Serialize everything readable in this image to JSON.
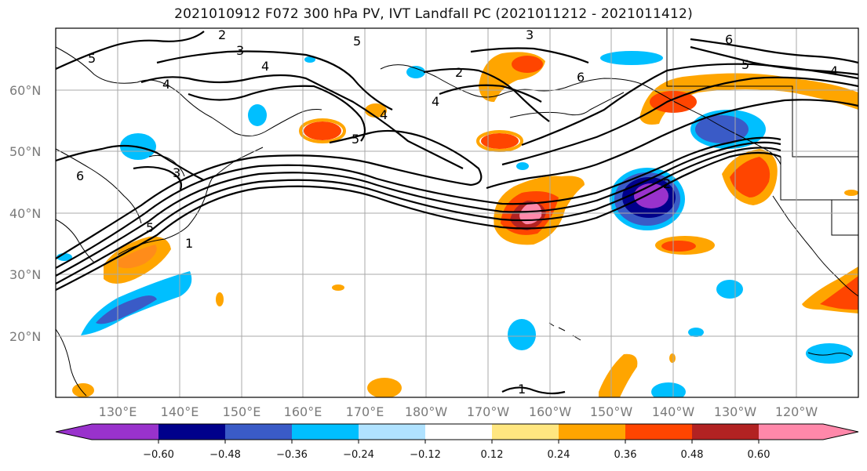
{
  "title": "2021010912 F072 300 hPa PV, IVT Landfall PC (2021011212 - 2021011412)",
  "lat_labels": [
    "60°N",
    "50°N",
    "40°N",
    "30°N",
    "20°N"
  ],
  "lon_labels": [
    "130°E",
    "140°E",
    "150°E",
    "160°E",
    "170°E",
    "180°W",
    "170°W",
    "160°W",
    "150°W",
    "140°W",
    "130°W",
    "120°W"
  ],
  "contour_labels": [
    "1",
    "2",
    "3",
    "4",
    "5",
    "6"
  ],
  "colorbar": {
    "ticks": [
      "−0.60",
      "−0.48",
      "−0.36",
      "−0.24",
      "−0.12",
      "0.12",
      "0.24",
      "0.36",
      "0.48",
      "0.60"
    ],
    "colors": [
      "#9932cc",
      "#00008b",
      "#3a5bc7",
      "#00bfff",
      "#b0e2ff",
      "#ffffff",
      "#ffe680",
      "#ffa500",
      "#ff4500",
      "#b22222",
      "#ff88aa"
    ]
  }
}
